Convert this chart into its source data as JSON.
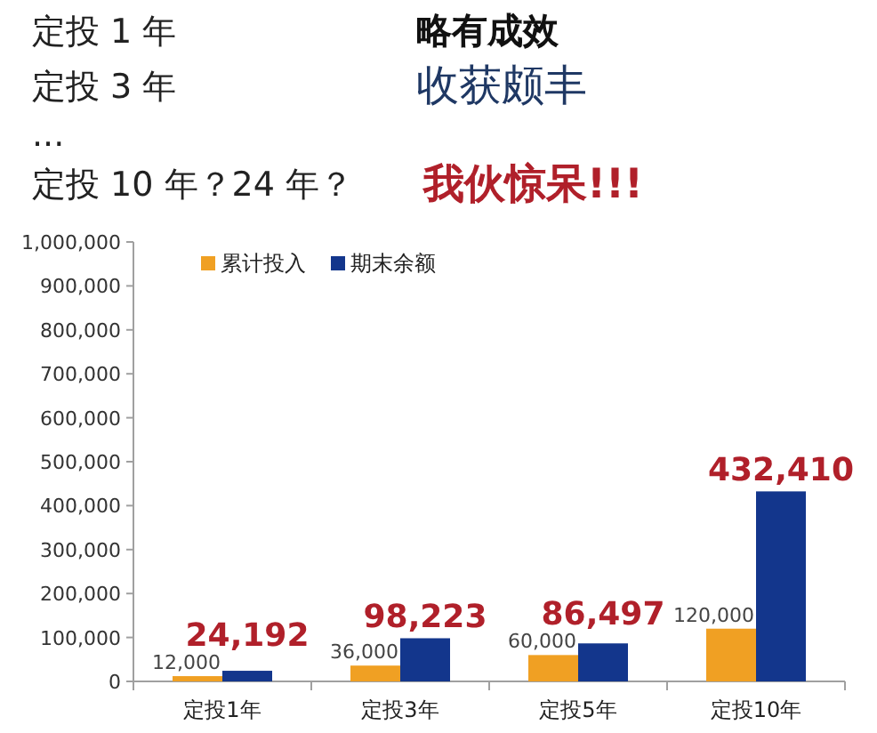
{
  "chart_data": {
    "type": "bar",
    "categories": [
      "定投1年",
      "定投3年",
      "定投5年",
      "定投10年"
    ],
    "series": [
      {
        "name": "累计投入",
        "color": "#f0a023",
        "values": [
          12000,
          36000,
          60000,
          120000
        ],
        "value_labels": [
          "12,000",
          "36,000",
          "60,000",
          "120,000"
        ]
      },
      {
        "name": "期末余额",
        "color": "#13368c",
        "values": [
          24192,
          98223,
          86497,
          432410
        ],
        "value_labels": [
          "24,192",
          "98,223",
          "86,497",
          "432,410"
        ]
      }
    ],
    "ylim": [
      0,
      1000000
    ],
    "yticks": [
      0,
      {
        "value": 100000,
        "label": "100,000"
      },
      {
        "value": 200000,
        "label": "200,000"
      },
      {
        "value": 300000,
        "label": "300,000"
      },
      {
        "value": 400000,
        "label": "400,000"
      },
      {
        "value": 500000,
        "label": "500,000"
      },
      {
        "value": 600000,
        "label": "600,000"
      },
      {
        "value": 700000,
        "label": "700,000"
      },
      {
        "value": 800000,
        "label": "800,000"
      },
      {
        "value": 900000,
        "label": "900,000"
      },
      {
        "value": 1000000,
        "label": "1,000,000"
      }
    ],
    "grid": false,
    "legend": "top left",
    "annotations": [
      "定投 1 年",
      "略有成效",
      "定投 3 年",
      "收获颇丰",
      "...",
      "定投 10 年？24 年？",
      "我伙惊呆!!!"
    ]
  }
}
